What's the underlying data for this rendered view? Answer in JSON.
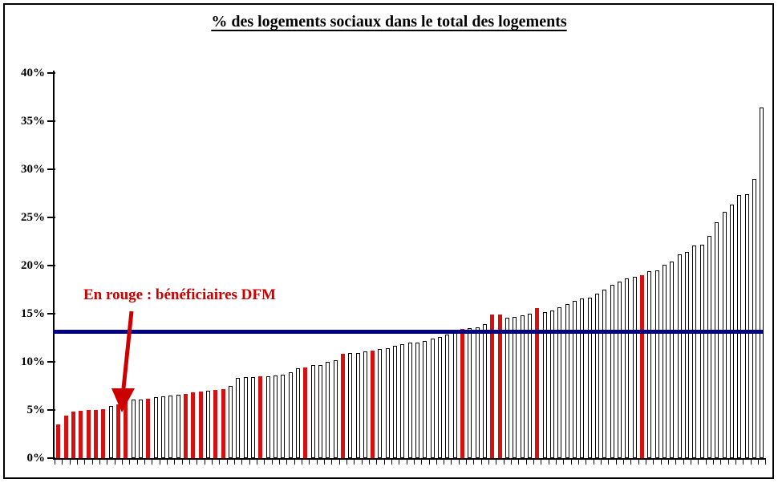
{
  "title": "% des logements sociaux dans le total des logements",
  "annotation": {
    "text": "En rouge : bénéficiaires DFM"
  },
  "colors": {
    "dfm_red": "#D51010",
    "annotation_red": "#CC0000",
    "reference_blue": "#000080",
    "axis_black": "#000000",
    "background": "#FFFFFF"
  },
  "chart_data": {
    "type": "bar",
    "title": "% des logements sociaux dans le total des logements",
    "xlabel": "",
    "ylabel": "",
    "ylim": [
      0,
      40
    ],
    "y_tick_values": [
      0,
      5,
      10,
      15,
      20,
      25,
      30,
      35,
      40
    ],
    "y_tick_labels": [
      "0%",
      "5%",
      "10%",
      "15%",
      "20%",
      "25%",
      "30%",
      "35%",
      "40%"
    ],
    "grid": false,
    "legend_note": "En rouge : bénéficiaires DFM",
    "reference_line_value_pct": 13.2,
    "values": [
      3.5,
      4.4,
      4.8,
      4.9,
      5.0,
      5.0,
      5.1,
      5.4,
      5.6,
      5.8,
      6.1,
      6.1,
      6.2,
      6.3,
      6.4,
      6.5,
      6.6,
      6.7,
      6.8,
      6.9,
      7.0,
      7.1,
      7.2,
      7.5,
      8.3,
      8.4,
      8.4,
      8.5,
      8.5,
      8.6,
      8.7,
      8.9,
      9.3,
      9.4,
      9.7,
      9.7,
      10.0,
      10.2,
      10.8,
      10.9,
      10.9,
      11.1,
      11.2,
      11.3,
      11.4,
      11.7,
      11.8,
      12.0,
      12.0,
      12.2,
      12.4,
      12.6,
      12.8,
      13.0,
      13.4,
      13.5,
      13.6,
      13.9,
      14.9,
      14.9,
      14.6,
      14.7,
      14.8,
      15.0,
      15.6,
      15.2,
      15.3,
      15.7,
      16.0,
      16.3,
      16.6,
      16.7,
      17.1,
      17.5,
      18.0,
      18.3,
      18.7,
      18.8,
      19.0,
      19.4,
      19.5,
      20.1,
      20.4,
      21.2,
      21.4,
      22.1,
      22.2,
      23.1,
      24.5,
      25.6,
      26.3,
      27.3,
      27.4,
      29.0,
      36.4
    ],
    "dfm_red_bar_indices": [
      0,
      1,
      2,
      3,
      4,
      5,
      6,
      8,
      9,
      12,
      17,
      18,
      19,
      21,
      22,
      27,
      33,
      38,
      42,
      54,
      58,
      59,
      64,
      78
    ],
    "arrow_target_bar_index": 9
  }
}
